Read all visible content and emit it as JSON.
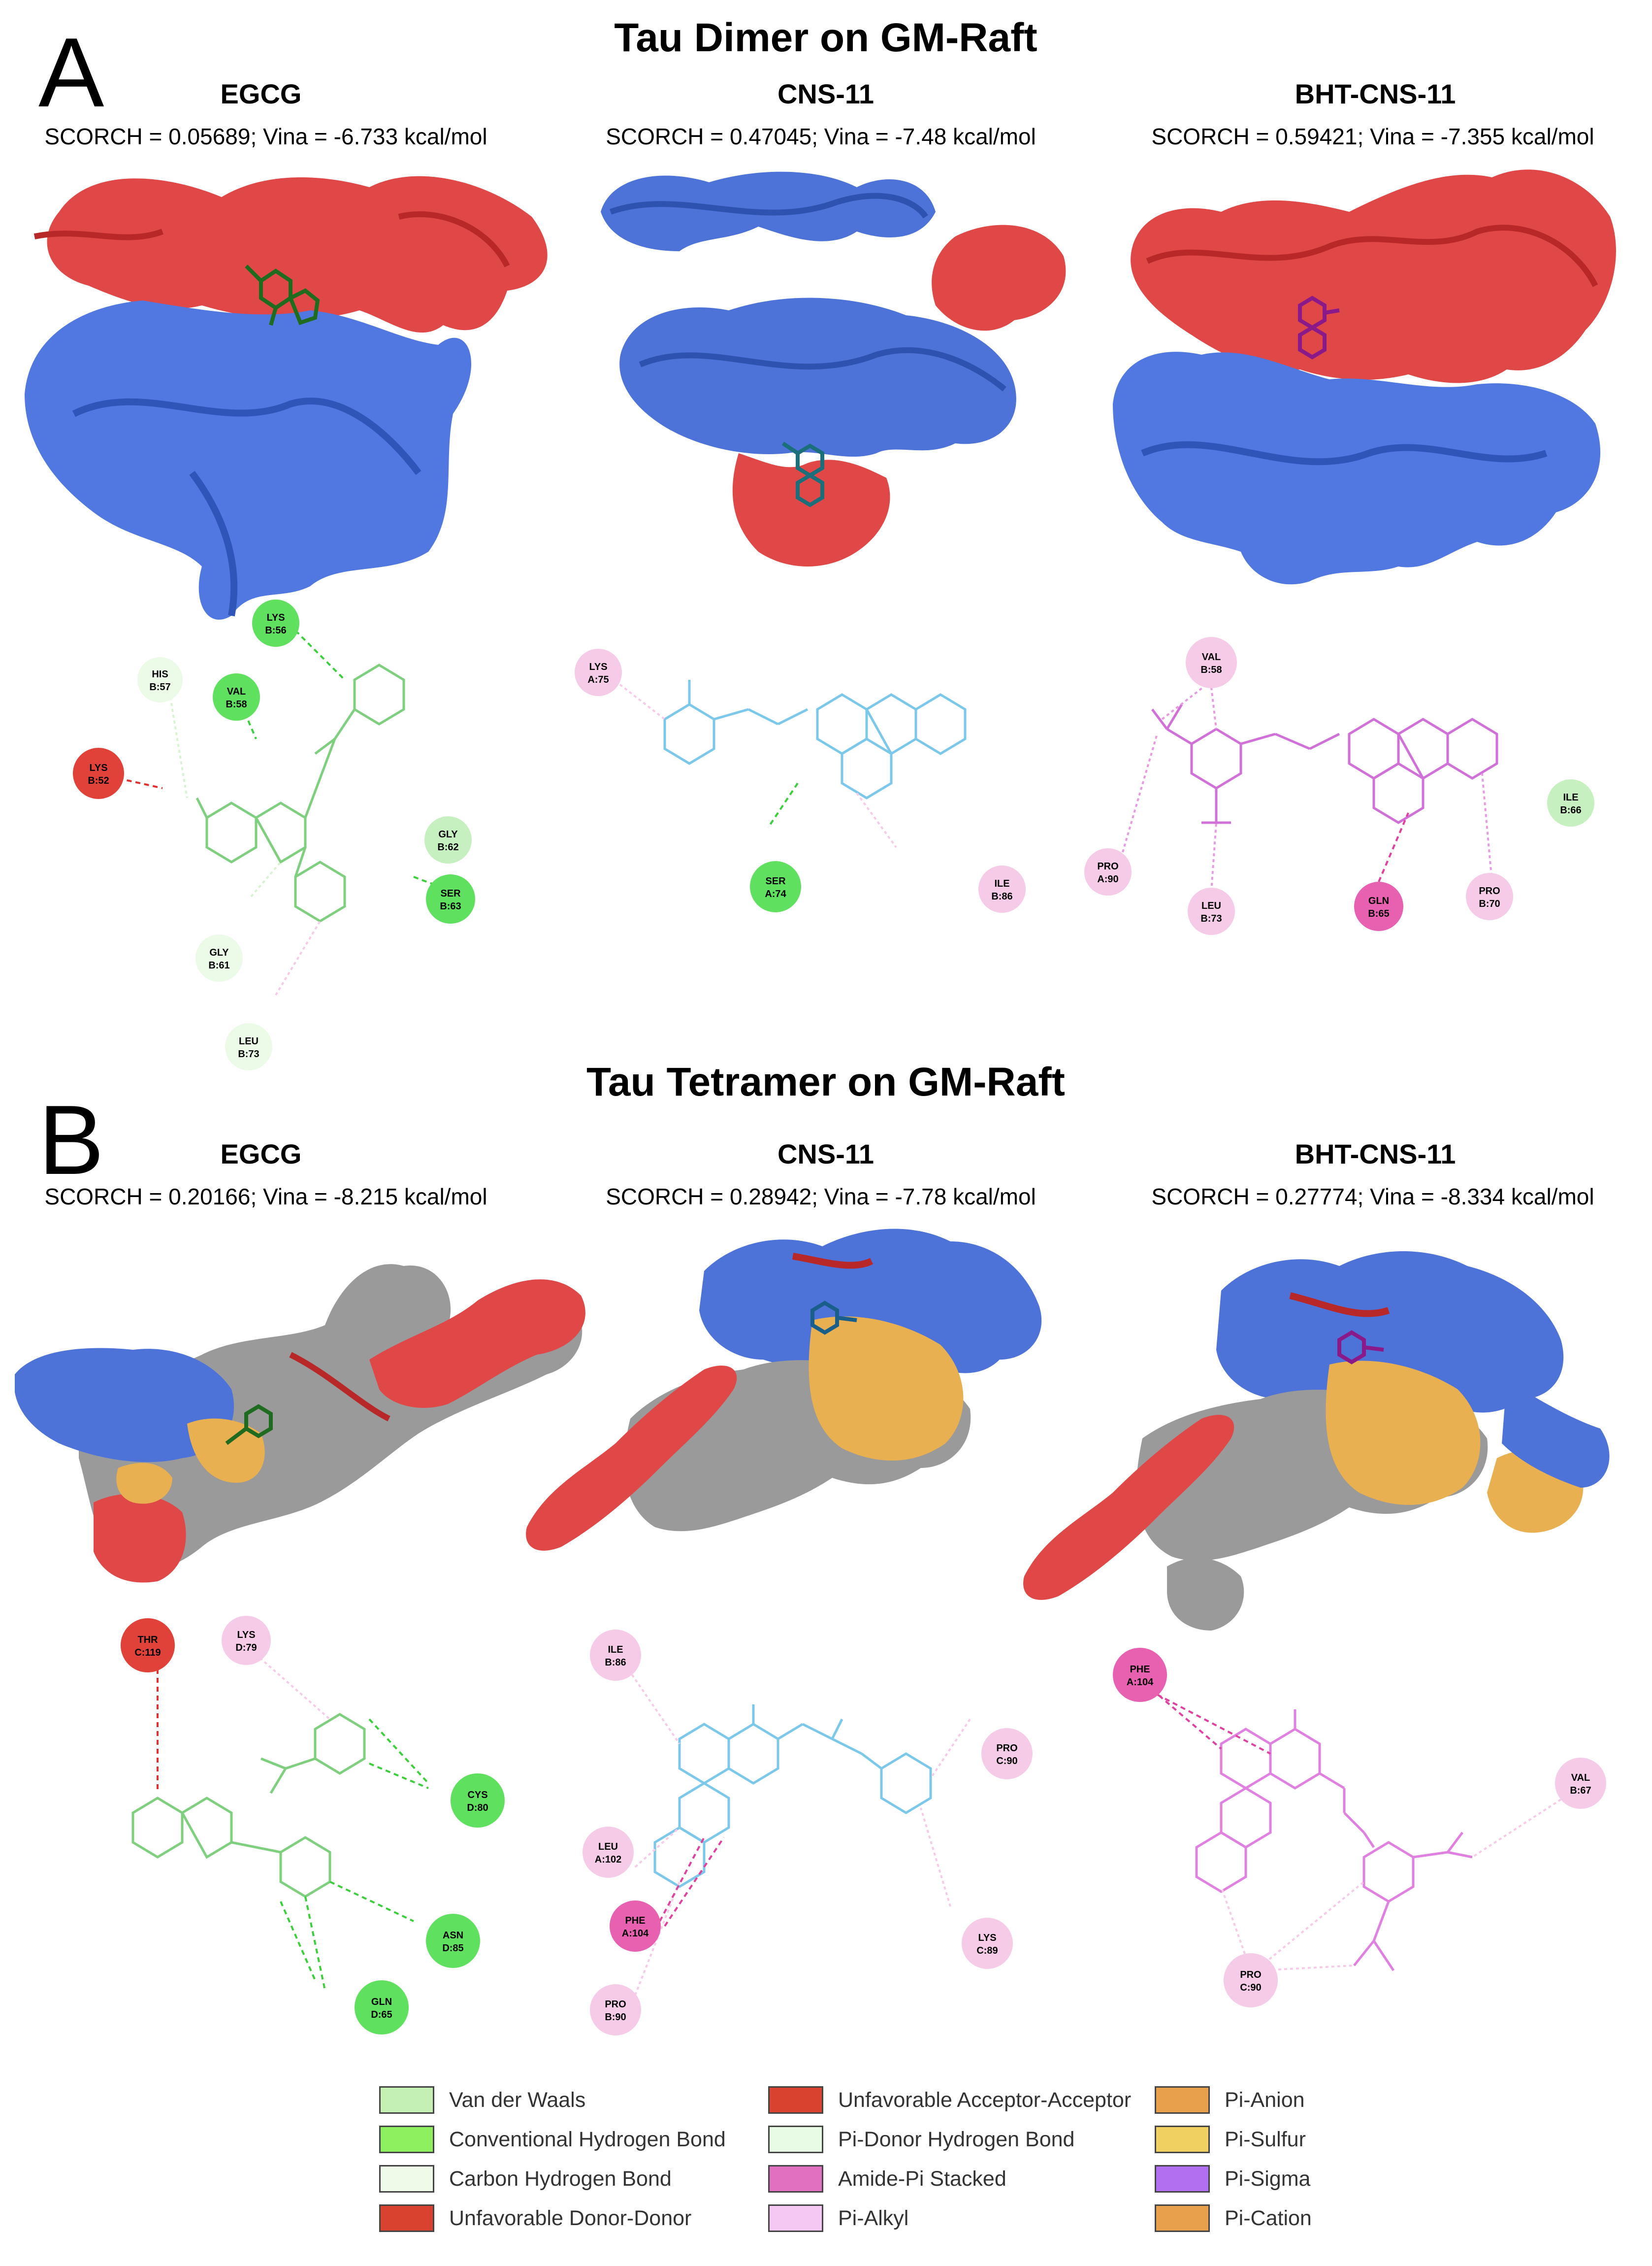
{
  "panel_a": {
    "letter": "A",
    "title": "Tau Dimer on GM-Raft",
    "columns": [
      {
        "name": "EGCG",
        "metrics": "SCORCH = 0.05689; Vina = -6.733 kcal/mol",
        "residues": [
          [
            "LYS",
            "B:56"
          ],
          [
            "HIS",
            "B:57"
          ],
          [
            "VAL",
            "B:58"
          ],
          [
            "LYS",
            "B:52"
          ],
          [
            "GLY",
            "B:62"
          ],
          [
            "SER",
            "B:63"
          ],
          [
            "GLY",
            "B:61"
          ],
          [
            "LEU",
            "B:73"
          ]
        ]
      },
      {
        "name": "CNS-11",
        "metrics": "SCORCH = 0.47045; Vina = -7.48 kcal/mol",
        "residues": [
          [
            "LYS",
            "A:75"
          ],
          [
            "SER",
            "A:74"
          ],
          [
            "ILE",
            "B:86"
          ]
        ]
      },
      {
        "name": "BHT-CNS-11",
        "metrics": "SCORCH = 0.59421; Vina = -7.355 kcal/mol",
        "residues": [
          [
            "VAL",
            "B:58"
          ],
          [
            "ILE",
            "B:66"
          ],
          [
            "PRO",
            "A:90"
          ],
          [
            "LEU",
            "B:73"
          ],
          [
            "GLN",
            "B:65"
          ],
          [
            "PRO",
            "B:70"
          ]
        ]
      }
    ]
  },
  "panel_b": {
    "letter": "B",
    "title": "Tau Tetramer on GM-Raft",
    "columns": [
      {
        "name": "EGCG",
        "metrics": "SCORCH = 0.20166; Vina = -8.215 kcal/mol",
        "residues": [
          [
            "LYS",
            "D:79"
          ],
          [
            "THR",
            "C:119"
          ],
          [
            "CYS",
            "D:80"
          ],
          [
            "ASN",
            "D:85"
          ],
          [
            "GLN",
            "D:65"
          ]
        ]
      },
      {
        "name": "CNS-11",
        "metrics": "SCORCH = 0.28942; Vina = -7.78 kcal/mol",
        "residues": [
          [
            "ILE",
            "B:86"
          ],
          [
            "PRO",
            "C:90"
          ],
          [
            "LEU",
            "A:102"
          ],
          [
            "PHE",
            "A:104"
          ],
          [
            "LYS",
            "C:89"
          ],
          [
            "PRO",
            "B:90"
          ]
        ]
      },
      {
        "name": "BHT-CNS-11",
        "metrics": "SCORCH = 0.27774; Vina = -8.334 kcal/mol",
        "residues": [
          [
            "PHE",
            "A:104"
          ],
          [
            "VAL",
            "B:67"
          ],
          [
            "PRO",
            "C:90"
          ]
        ]
      }
    ]
  },
  "legend": [
    {
      "label": "Van der Waals",
      "color": "#c4f0b4"
    },
    {
      "label": "Conventional Hydrogen Bond",
      "color": "#8ff05f"
    },
    {
      "label": "Carbon Hydrogen Bond",
      "color": "#eefbe8"
    },
    {
      "label": "Unfavorable Donor-Donor",
      "color": "#d8422e"
    },
    {
      "label": "Unfavorable Acceptor-Acceptor",
      "color": "#d8422e"
    },
    {
      "label": "Pi-Donor Hydrogen Bond",
      "color": "#e8fbe4"
    },
    {
      "label": "Amide-Pi Stacked",
      "color": "#e070c0"
    },
    {
      "label": "Pi-Alkyl",
      "color": "#f4c8f0"
    },
    {
      "label": "Pi-Anion",
      "color": "#e8a04c"
    },
    {
      "label": "Pi-Sulfur",
      "color": "#f0d060"
    },
    {
      "label": "Pi-Sigma",
      "color": "#b070f0"
    },
    {
      "label": "Pi-Cation",
      "color": "#e8a04c"
    }
  ]
}
